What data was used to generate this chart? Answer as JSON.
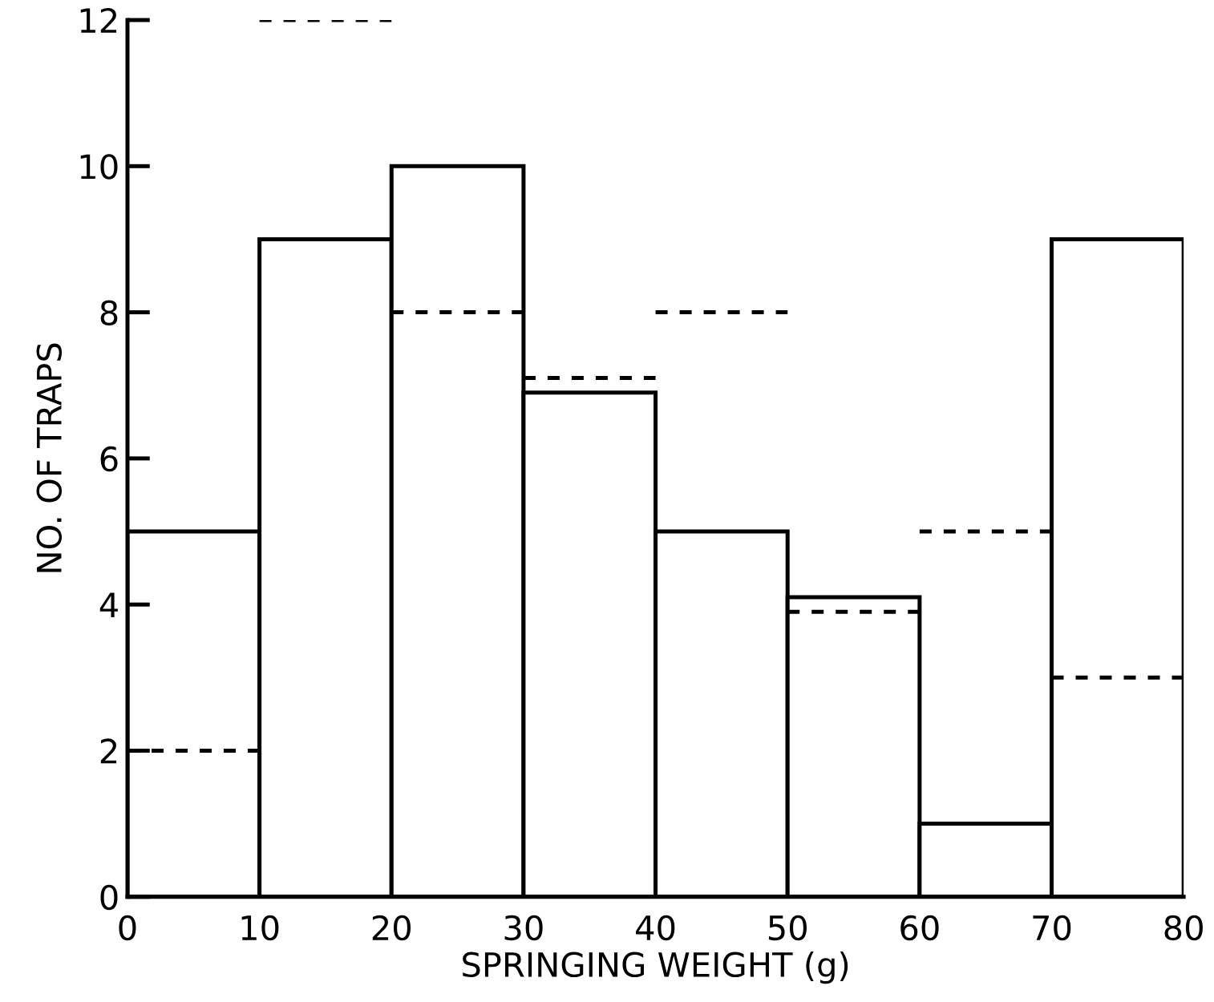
{
  "chart_data": {
    "type": "histogram",
    "xlabel": "SPRINGING WEIGHT (g)",
    "ylabel": "NO. OF TRAPS",
    "bins": [
      0,
      10,
      20,
      30,
      40,
      50,
      60,
      70,
      80
    ],
    "series": [
      {
        "color": "#000000",
        "line_style": "solid",
        "values": [
          5,
          9,
          10,
          6.9,
          5,
          4.1,
          1,
          9
        ]
      },
      {
        "type": "line",
        "color": "#000000",
        "line_style": "dashed",
        "x": [
          0,
          10
        ],
        "values": [
          2,
          2
        ]
      },
      {
        "type": "line",
        "color": "#000000",
        "line_style": "dashed",
        "x": [
          10,
          20
        ],
        "values": [
          12,
          12
        ]
      },
      {
        "type": "line",
        "color": "#000000",
        "line_style": "dashed",
        "x": [
          20,
          30
        ],
        "values": [
          8,
          8
        ]
      },
      {
        "type": "line",
        "color": "#000000",
        "line_style": "dashed",
        "x": [
          30,
          40
        ],
        "values": [
          7.1,
          7.1
        ]
      },
      {
        "type": "line",
        "color": "#000000",
        "line_style": "dashed",
        "x": [
          40,
          50
        ],
        "values": [
          8,
          8
        ]
      },
      {
        "type": "line",
        "color": "#000000",
        "line_style": "dashed",
        "x": [
          50,
          60
        ],
        "values": [
          3.9,
          3.9
        ]
      },
      {
        "type": "line",
        "color": "#000000",
        "line_style": "dashed",
        "x": [
          60,
          70
        ],
        "values": [
          5,
          5
        ]
      },
      {
        "type": "line",
        "color": "#000000",
        "line_style": "dashed",
        "x": [
          70,
          80
        ],
        "values": [
          3,
          3
        ]
      }
    ],
    "xlim": [
      0,
      80
    ],
    "xticks": [
      0,
      10,
      20,
      30,
      40,
      50,
      60,
      70,
      80
    ],
    "ylim": [
      0,
      12
    ],
    "yticks": [
      0,
      2,
      4,
      6,
      8,
      10,
      12
    ],
    "grid": false
  }
}
